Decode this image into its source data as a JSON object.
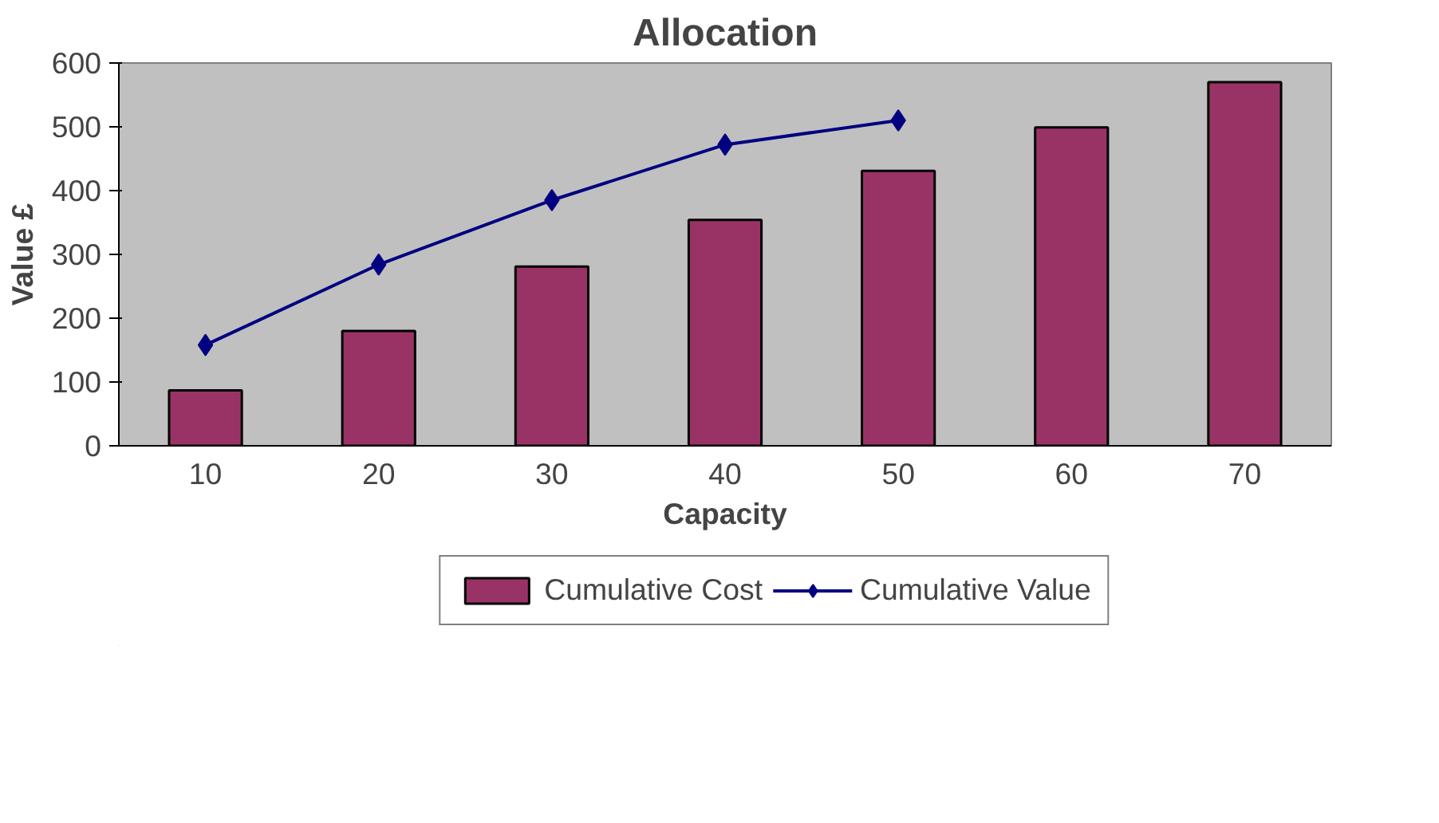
{
  "chart_data": {
    "type": "bar",
    "title": "Allocation",
    "xlabel": "Capacity",
    "ylabel": "Value £",
    "categories": [
      "10",
      "20",
      "30",
      "40",
      "50",
      "60",
      "70"
    ],
    "series": [
      {
        "name": "Cumulative Cost",
        "color": "#993366",
        "values": [
          87,
          180,
          281,
          354,
          431,
          499,
          570
        ]
      },
      {
        "name": "Cumulative Value",
        "color": "#000080",
        "type": "line",
        "marker": "diamond",
        "values": [
          158,
          284,
          385,
          472,
          510,
          null,
          null
        ]
      }
    ],
    "ylim": [
      0,
      600
    ],
    "yticks": [
      0,
      100,
      200,
      300,
      400,
      500,
      600
    ],
    "grid": false,
    "legend": "bottom"
  }
}
